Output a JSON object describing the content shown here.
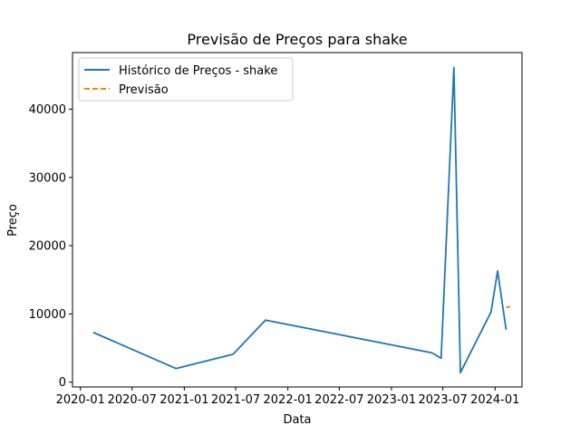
{
  "chart_data": {
    "type": "line",
    "title": "Previsão de Preços para shake",
    "xlabel": "Data",
    "ylabel": "Preço",
    "ylim": [
      -700,
      48300
    ],
    "xlim": [
      "2019-12-04",
      "2024-04-05"
    ],
    "x_ticks": [
      {
        "date": "2020-01-01",
        "label": "2020-01"
      },
      {
        "date": "2020-07-01",
        "label": "2020-07"
      },
      {
        "date": "2021-01-01",
        "label": "2021-01"
      },
      {
        "date": "2021-07-01",
        "label": "2021-07"
      },
      {
        "date": "2022-01-01",
        "label": "2022-01"
      },
      {
        "date": "2022-07-01",
        "label": "2022-07"
      },
      {
        "date": "2023-01-01",
        "label": "2023-01"
      },
      {
        "date": "2023-07-01",
        "label": "2023-07"
      },
      {
        "date": "2024-01-01",
        "label": "2024-01"
      }
    ],
    "y_ticks": [
      {
        "value": 0,
        "label": "0"
      },
      {
        "value": 10000,
        "label": "10000"
      },
      {
        "value": 20000,
        "label": "20000"
      },
      {
        "value": 30000,
        "label": "30000"
      },
      {
        "value": 40000,
        "label": "40000"
      }
    ],
    "series": [
      {
        "name": "Histórico de Preços - shake",
        "color": "#1f77b4",
        "dash": "solid",
        "points": [
          {
            "x": "2020-02-15",
            "y": 7300
          },
          {
            "x": "2020-12-03",
            "y": 2000
          },
          {
            "x": "2021-06-22",
            "y": 4100
          },
          {
            "x": "2021-10-14",
            "y": 9100
          },
          {
            "x": "2023-05-24",
            "y": 4300
          },
          {
            "x": "2023-06-25",
            "y": 3500
          },
          {
            "x": "2023-08-09",
            "y": 46100
          },
          {
            "x": "2023-09-01",
            "y": 1400
          },
          {
            "x": "2023-12-18",
            "y": 10300
          },
          {
            "x": "2024-01-10",
            "y": 16300
          },
          {
            "x": "2024-02-09",
            "y": 7700
          }
        ]
      },
      {
        "name": "Previsão",
        "color": "#ff7f0e",
        "dash": "dashed",
        "points": [
          {
            "x": "2024-02-09",
            "y": 10900
          },
          {
            "x": "2024-02-23",
            "y": 11100
          }
        ]
      }
    ],
    "legend_position": "top-left"
  }
}
